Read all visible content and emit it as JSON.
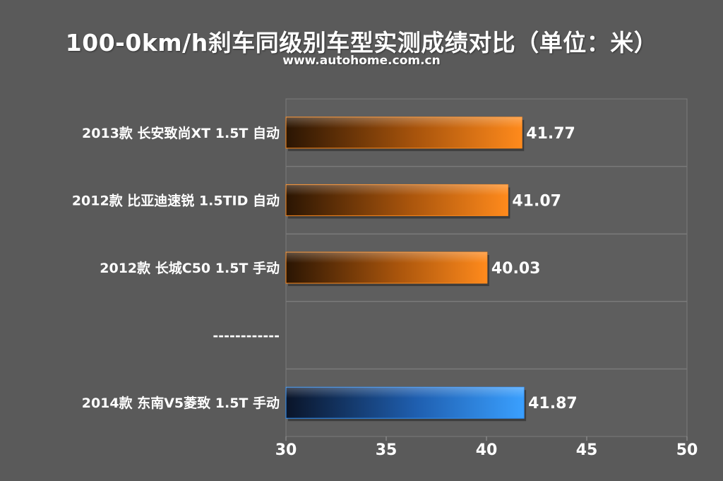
{
  "chart_data": {
    "type": "bar",
    "orientation": "horizontal",
    "title": "100-0km/h刹车同级别车型实测成绩对比（单位：米）",
    "subtitle": "www.autohome.com.cn",
    "categories": [
      "2013款 长安致尚XT 1.5T 自动",
      "2012款 比亚迪速锐 1.5TID 自动",
      "2012款 长城C50 1.5T 手动",
      "------------",
      "2014款 东南V5菱致 1.5T 手动"
    ],
    "values": [
      41.77,
      41.07,
      40.03,
      null,
      41.87
    ],
    "value_labels": [
      "41.77",
      "41.07",
      "40.03",
      "",
      "41.87"
    ],
    "bar_colors": [
      "#ff8a1c",
      "#ff8a1c",
      "#ff8a1c",
      null,
      "#2f93ff"
    ],
    "xlim": [
      30,
      50
    ],
    "x_ticks": [
      "30",
      "35",
      "40",
      "45",
      "50"
    ],
    "grid": true,
    "legend": "none",
    "xlabel": "",
    "ylabel": ""
  }
}
